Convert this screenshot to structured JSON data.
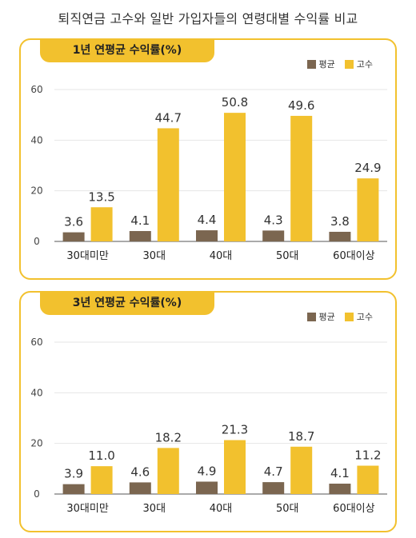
{
  "title": "퇴직연금 고수와 일반 가입자들의 연령대별 수익률 비교",
  "colors": {
    "average": "#7b6650",
    "expert": "#f2c12e",
    "border": "#f2c12e"
  },
  "chart_data": [
    {
      "type": "bar",
      "title": "1년 연평균 수익률(%)",
      "categories": [
        "30대미만",
        "30대",
        "40대",
        "50대",
        "60대이상"
      ],
      "series": [
        {
          "name": "평균",
          "values": [
            3.6,
            4.1,
            4.4,
            4.3,
            3.8
          ]
        },
        {
          "name": "고수",
          "values": [
            13.5,
            44.7,
            50.8,
            49.6,
            24.9
          ]
        }
      ],
      "ylim": [
        0,
        60
      ],
      "yticks": [
        0,
        20,
        40,
        60
      ],
      "legend": "top-right",
      "grid": true
    },
    {
      "type": "bar",
      "title": "3년 연평균 수익률(%)",
      "categories": [
        "30대미만",
        "30대",
        "40대",
        "50대",
        "60대이상"
      ],
      "series": [
        {
          "name": "평균",
          "values": [
            3.9,
            4.6,
            4.9,
            4.7,
            4.1
          ]
        },
        {
          "name": "고수",
          "values": [
            11.0,
            18.2,
            21.3,
            18.7,
            11.2
          ]
        }
      ],
      "ylim": [
        0,
        60
      ],
      "yticks": [
        0,
        20,
        40,
        60
      ],
      "legend": "top-right",
      "grid": true
    }
  ]
}
